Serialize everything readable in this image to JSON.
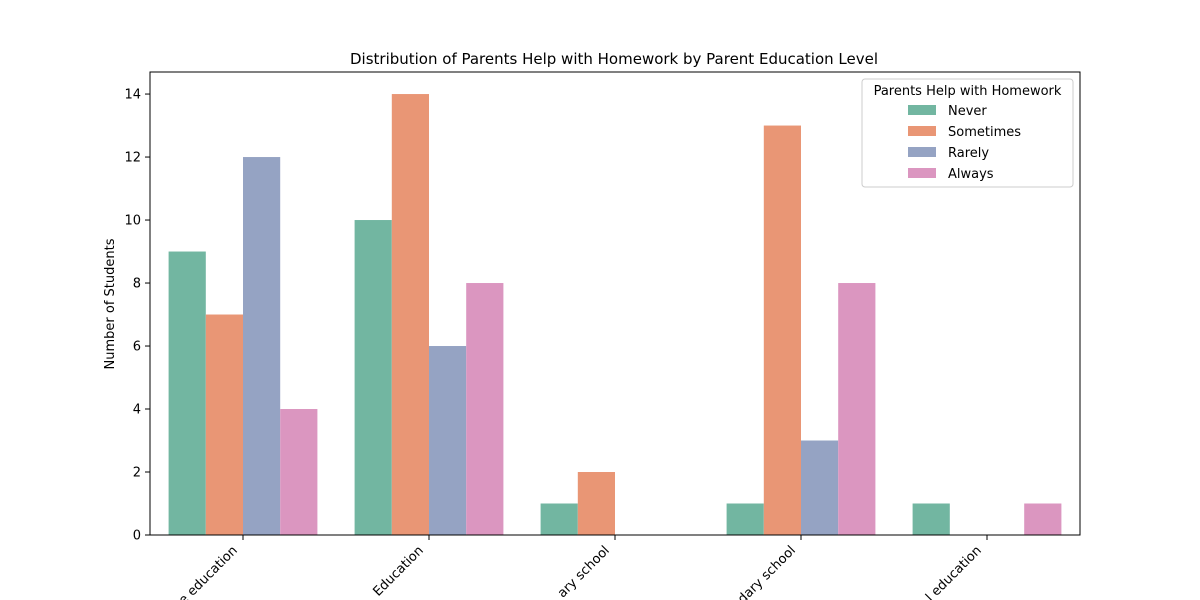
{
  "chart_data": {
    "type": "bar",
    "title": "Distribution of Parents Help with Homework by Parent Education Level",
    "xlabel": "",
    "ylabel": "Number of Students",
    "categories": [
      "Higher education",
      "Secondary Education",
      "Primary school",
      "Secondary school",
      "No formal education"
    ],
    "category_labels_visible": [
      "e education",
      "Education",
      "ary school",
      "dary school",
      "l education"
    ],
    "ylim": [
      0,
      14.7
    ],
    "yticks": [
      0,
      2,
      4,
      6,
      8,
      10,
      12,
      14
    ],
    "grid": false,
    "legend": {
      "title": "Parents Help with Homework",
      "placement": "top-right"
    },
    "series": [
      {
        "name": "Never",
        "color": "#72b6a1",
        "values": [
          9,
          10,
          1,
          1,
          1
        ]
      },
      {
        "name": "Sometimes",
        "color": "#e99675",
        "values": [
          7,
          14,
          2,
          13,
          0
        ]
      },
      {
        "name": "Rarely",
        "color": "#95a3c3",
        "values": [
          12,
          6,
          0,
          3,
          0
        ]
      },
      {
        "name": "Always",
        "color": "#db96c0",
        "values": [
          4,
          8,
          0,
          8,
          1
        ]
      }
    ]
  }
}
